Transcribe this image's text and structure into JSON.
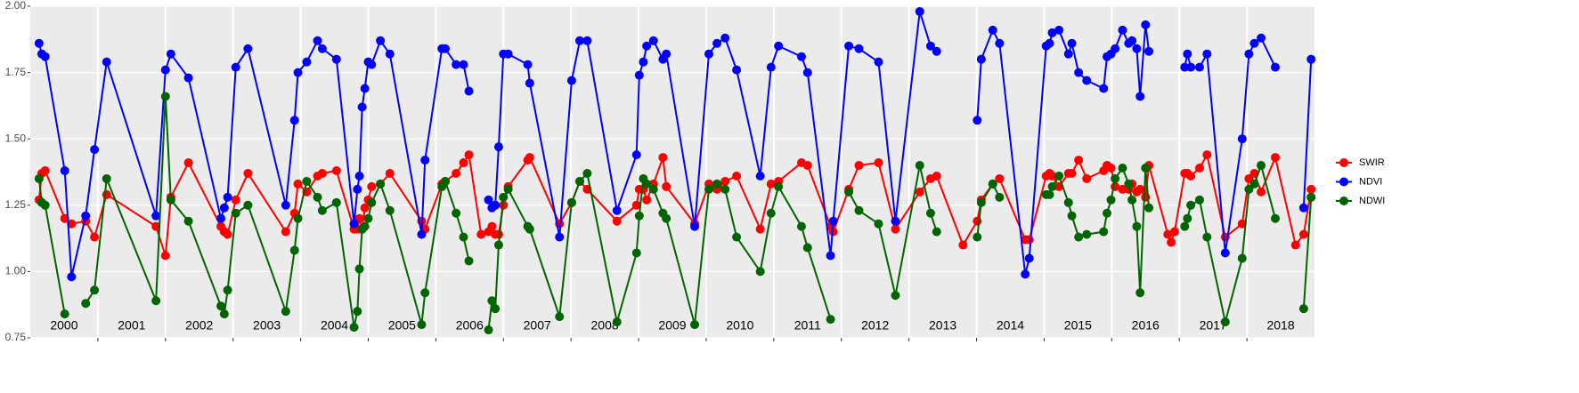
{
  "chart_data": {
    "type": "line",
    "x": [
      2000.13,
      2000.17,
      2000.22,
      2000.51,
      2000.61,
      2000.82,
      2000.95,
      2001.13,
      2001.86,
      2002.0,
      2002.08,
      2002.34,
      2002.82,
      2002.87,
      2002.92,
      2003.04,
      2003.22,
      2003.78,
      2003.91,
      2003.96,
      2004.09,
      2004.25,
      2004.32,
      2004.53,
      2004.79,
      2004.84,
      2004.87,
      2004.91,
      2004.95,
      2005.0,
      2005.05,
      2005.18,
      2005.32,
      2005.79,
      2005.84,
      2006.09,
      2006.14,
      2006.3,
      2006.41,
      2006.49,
      2006.67,
      2006.78,
      2006.83,
      2006.88,
      2006.93,
      2007.0,
      2007.07,
      2007.36,
      2007.39,
      2007.83,
      2008.01,
      2008.13,
      2008.24,
      2008.68,
      2008.97,
      2009.01,
      2009.07,
      2009.12,
      2009.22,
      2009.36,
      2009.41,
      2009.83,
      2010.04,
      2010.16,
      2010.28,
      2010.45,
      2010.8,
      2010.96,
      2011.07,
      2011.41,
      2011.5,
      2011.84,
      2011.88,
      2012.11,
      2012.26,
      2012.55,
      2012.8,
      2013.16,
      2013.32,
      2013.41,
      2013.8,
      2014.01,
      2014.07,
      2014.24,
      2014.34,
      2014.72,
      2014.78,
      2015.03,
      2015.08,
      2015.12,
      2015.22,
      2015.36,
      2015.41,
      2015.51,
      2015.63,
      2015.88,
      2015.93,
      2015.99,
      2016.05,
      2016.16,
      2016.25,
      2016.3,
      2016.37,
      2016.42,
      2016.5,
      2016.55,
      2016.83,
      2016.88,
      2016.93,
      2017.08,
      2017.12,
      2017.17,
      2017.3,
      2017.41,
      2017.68,
      2017.93,
      2018.03,
      2018.11,
      2018.21,
      2018.42,
      2018.72,
      2018.84,
      2018.95
    ],
    "series": [
      {
        "name": "SWIR",
        "color": "#ff0000",
        "values": [
          1.27,
          1.37,
          1.38,
          1.2,
          1.18,
          1.19,
          1.13,
          1.29,
          1.17,
          1.06,
          1.28,
          1.41,
          1.17,
          1.15,
          1.14,
          1.27,
          1.37,
          1.15,
          1.22,
          1.33,
          1.3,
          1.36,
          1.37,
          1.38,
          1.16,
          1.16,
          1.2,
          1.16,
          1.24,
          1.27,
          1.32,
          1.33,
          1.37,
          1.19,
          1.16,
          1.33,
          1.34,
          1.37,
          1.41,
          1.44,
          1.14,
          1.15,
          1.17,
          1.14,
          1.14,
          1.25,
          1.32,
          1.42,
          1.43,
          1.18,
          1.26,
          1.34,
          1.31,
          1.19,
          1.25,
          1.31,
          1.31,
          1.27,
          1.33,
          1.43,
          1.32,
          1.18,
          1.33,
          1.31,
          1.34,
          1.36,
          1.16,
          1.33,
          1.34,
          1.41,
          1.4,
          1.17,
          1.15,
          1.31,
          1.4,
          1.41,
          1.16,
          1.3,
          1.35,
          1.36,
          1.1,
          1.19,
          1.27,
          1.33,
          1.35,
          1.12,
          1.12,
          1.36,
          1.37,
          1.36,
          1.32,
          1.37,
          1.37,
          1.42,
          1.35,
          1.38,
          1.4,
          1.39,
          1.32,
          1.31,
          1.31,
          1.33,
          1.3,
          1.31,
          1.28,
          1.4,
          1.14,
          1.11,
          1.15,
          1.37,
          1.37,
          1.36,
          1.39,
          1.44,
          1.13,
          1.18,
          1.35,
          1.37,
          1.3,
          1.43,
          1.1,
          1.14,
          1.31
        ]
      },
      {
        "name": "NDVI",
        "color": "#0000ff",
        "values": [
          1.86,
          1.82,
          1.81,
          1.38,
          0.98,
          1.21,
          1.46,
          1.79,
          1.21,
          1.76,
          1.82,
          1.73,
          1.2,
          1.24,
          1.28,
          1.77,
          1.84,
          1.25,
          1.57,
          1.75,
          1.79,
          1.87,
          1.84,
          1.8,
          1.18,
          1.31,
          1.36,
          1.62,
          1.69,
          1.79,
          1.78,
          1.87,
          1.82,
          1.14,
          1.42,
          1.84,
          1.84,
          1.78,
          1.78,
          1.68,
          null,
          1.27,
          1.24,
          1.25,
          1.47,
          1.82,
          1.82,
          1.78,
          1.71,
          1.13,
          1.72,
          1.87,
          1.87,
          1.23,
          1.44,
          1.74,
          1.79,
          1.85,
          1.87,
          1.8,
          1.82,
          1.17,
          1.82,
          1.86,
          1.88,
          1.76,
          1.36,
          1.77,
          1.85,
          1.81,
          1.75,
          1.06,
          1.19,
          1.85,
          1.84,
          1.79,
          1.19,
          1.98,
          1.85,
          1.83,
          null,
          1.57,
          1.8,
          1.91,
          1.86,
          0.99,
          1.05,
          1.85,
          1.86,
          1.9,
          1.91,
          1.82,
          1.86,
          1.75,
          1.72,
          1.69,
          1.81,
          1.82,
          1.84,
          1.91,
          1.86,
          1.87,
          1.84,
          1.66,
          1.93,
          1.83,
          null,
          null,
          null,
          1.77,
          1.82,
          1.77,
          1.77,
          1.82,
          1.07,
          1.5,
          1.82,
          1.86,
          1.88,
          1.77,
          null,
          1.24,
          1.8
        ]
      },
      {
        "name": "NDWI",
        "color": "#006400",
        "values": [
          1.35,
          1.26,
          1.25,
          0.84,
          null,
          0.88,
          0.93,
          1.35,
          0.89,
          1.66,
          1.27,
          1.19,
          0.87,
          0.84,
          0.93,
          1.22,
          1.25,
          0.85,
          1.08,
          1.2,
          1.34,
          1.28,
          1.23,
          1.26,
          0.79,
          0.85,
          1.01,
          1.16,
          1.17,
          1.2,
          1.26,
          1.33,
          1.23,
          0.8,
          0.92,
          1.32,
          1.34,
          1.22,
          1.13,
          1.04,
          null,
          0.78,
          0.89,
          0.86,
          1.1,
          1.28,
          1.31,
          1.17,
          1.16,
          0.83,
          1.26,
          1.34,
          1.37,
          0.81,
          1.07,
          1.21,
          1.35,
          1.33,
          1.31,
          1.22,
          1.2,
          0.8,
          1.31,
          1.33,
          1.31,
          1.13,
          1.0,
          1.22,
          1.32,
          1.17,
          1.09,
          0.82,
          null,
          1.3,
          1.23,
          1.18,
          0.91,
          1.4,
          1.22,
          1.15,
          null,
          1.13,
          1.26,
          1.33,
          1.28,
          null,
          null,
          1.29,
          1.29,
          1.32,
          1.36,
          1.26,
          1.21,
          1.13,
          1.14,
          1.15,
          1.22,
          1.27,
          1.35,
          1.39,
          1.33,
          1.27,
          1.17,
          0.92,
          1.39,
          1.24,
          null,
          null,
          null,
          1.17,
          1.2,
          1.25,
          1.27,
          1.13,
          0.81,
          1.05,
          1.31,
          1.33,
          1.4,
          1.2,
          null,
          0.86,
          1.28
        ]
      }
    ],
    "xlim": [
      2000,
      2019
    ],
    "xgrid": [
      2001,
      2002,
      2003,
      2004,
      2005,
      2006,
      2007,
      2008,
      2009,
      2010,
      2011,
      2012,
      2013,
      2014,
      2015,
      2016,
      2017,
      2018
    ],
    "xticks": [
      {
        "value": 2000.5,
        "label": "2000"
      },
      {
        "value": 2001.5,
        "label": "2001"
      },
      {
        "value": 2002.5,
        "label": "2002"
      },
      {
        "value": 2003.5,
        "label": "2003"
      },
      {
        "value": 2004.5,
        "label": "2004"
      },
      {
        "value": 2005.5,
        "label": "2005"
      },
      {
        "value": 2006.5,
        "label": "2006"
      },
      {
        "value": 2007.5,
        "label": "2007"
      },
      {
        "value": 2008.5,
        "label": "2008"
      },
      {
        "value": 2009.5,
        "label": "2009"
      },
      {
        "value": 2010.5,
        "label": "2010"
      },
      {
        "value": 2011.5,
        "label": "2011"
      },
      {
        "value": 2012.5,
        "label": "2012"
      },
      {
        "value": 2013.5,
        "label": "2013"
      },
      {
        "value": 2014.5,
        "label": "2014"
      },
      {
        "value": 2015.5,
        "label": "2015"
      },
      {
        "value": 2016.5,
        "label": "2016"
      },
      {
        "value": 2017.5,
        "label": "2017"
      },
      {
        "value": 2018.5,
        "label": "2018"
      }
    ],
    "ylim": [
      0.75,
      2.0
    ],
    "yticks": [
      {
        "value": 0.75,
        "label": "0.75"
      },
      {
        "value": 1,
        "label": "1.00"
      },
      {
        "value": 1.25,
        "label": "1.25"
      },
      {
        "value": 1.5,
        "label": "1.50"
      },
      {
        "value": 1.75,
        "label": "1.75"
      },
      {
        "value": 2,
        "label": "2.00"
      }
    ],
    "grid": true
  }
}
